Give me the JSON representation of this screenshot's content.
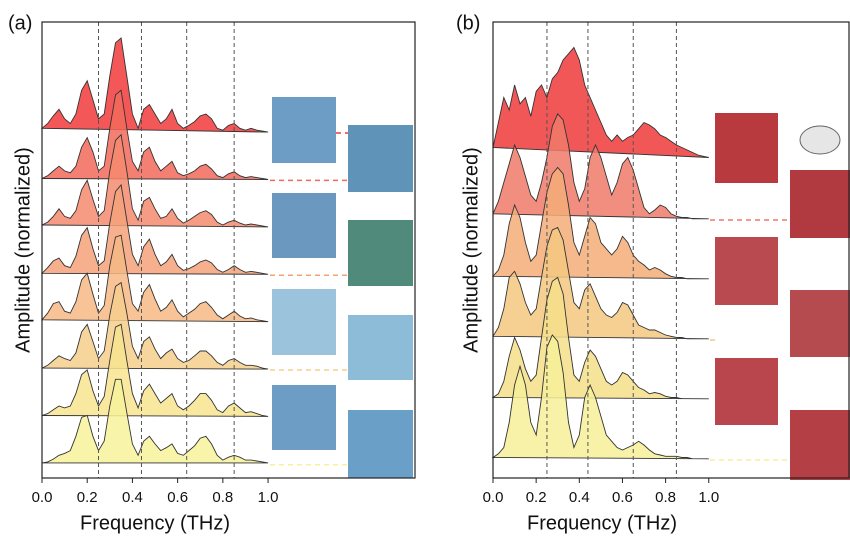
{
  "chart_data": [
    {
      "type": "ridgeline",
      "panel_label": "(a)",
      "x_label": "Frequency (THz)",
      "y_label": "Amplitude (normalized)",
      "x": [
        0,
        0.025,
        0.05,
        0.075,
        0.1,
        0.125,
        0.15,
        0.175,
        0.2,
        0.225,
        0.25,
        0.275,
        0.3,
        0.325,
        0.35,
        0.375,
        0.4,
        0.425,
        0.45,
        0.475,
        0.5,
        0.525,
        0.55,
        0.575,
        0.6,
        0.625,
        0.65,
        0.675,
        0.7,
        0.725,
        0.75,
        0.775,
        0.8,
        0.825,
        0.85,
        0.875,
        0.9,
        0.925,
        0.95,
        0.975,
        1
      ],
      "xlim": [
        0,
        1.65
      ],
      "xticks": [
        {
          "value": 0,
          "label": "0.0"
        },
        0.2,
        0.4,
        0.6,
        0.8,
        {
          "value": 1,
          "label": "1.0"
        }
      ],
      "vlines": [
        0.25,
        0.44,
        0.64,
        0.85
      ],
      "series": [
        {
          "color": "#f23a3a",
          "values": [
            0.05,
            0.1,
            0.18,
            0.25,
            0.15,
            0.1,
            0.2,
            0.45,
            0.55,
            0.35,
            0.15,
            0.2,
            0.6,
            0.95,
            1.0,
            0.6,
            0.2,
            0.05,
            0.25,
            0.3,
            0.2,
            0.1,
            0.15,
            0.25,
            0.1,
            0.05,
            0.08,
            0.12,
            0.18,
            0.2,
            0.15,
            0.05,
            0.03,
            0.08,
            0.1,
            0.05,
            0.03,
            0.05,
            0.03,
            0.02,
            0.01
          ]
        },
        {
          "color": "#f26a5a",
          "values": [
            0.02,
            0.05,
            0.1,
            0.15,
            0.1,
            0.08,
            0.15,
            0.35,
            0.45,
            0.3,
            0.1,
            0.15,
            0.55,
            0.9,
            0.95,
            0.55,
            0.2,
            0.1,
            0.3,
            0.35,
            0.2,
            0.1,
            0.15,
            0.2,
            0.08,
            0.05,
            0.07,
            0.1,
            0.15,
            0.17,
            0.12,
            0.05,
            0.03,
            0.07,
            0.09,
            0.05,
            0.03,
            0.04,
            0.03,
            0.02,
            0.01
          ]
        },
        {
          "color": "#f58a6e",
          "values": [
            0.03,
            0.06,
            0.12,
            0.2,
            0.12,
            0.1,
            0.18,
            0.4,
            0.5,
            0.3,
            0.12,
            0.18,
            0.6,
            0.92,
            0.98,
            0.6,
            0.2,
            0.08,
            0.28,
            0.32,
            0.2,
            0.1,
            0.12,
            0.2,
            0.1,
            0.05,
            0.08,
            0.12,
            0.16,
            0.18,
            0.14,
            0.06,
            0.03,
            0.06,
            0.08,
            0.05,
            0.03,
            0.04,
            0.03,
            0.02,
            0.01
          ]
        },
        {
          "color": "#f5a27a",
          "values": [
            0.02,
            0.08,
            0.15,
            0.18,
            0.1,
            0.08,
            0.2,
            0.42,
            0.5,
            0.28,
            0.1,
            0.15,
            0.55,
            0.88,
            0.95,
            0.58,
            0.22,
            0.1,
            0.3,
            0.38,
            0.22,
            0.1,
            0.14,
            0.22,
            0.1,
            0.05,
            0.07,
            0.1,
            0.14,
            0.16,
            0.13,
            0.06,
            0.03,
            0.06,
            0.1,
            0.06,
            0.03,
            0.04,
            0.03,
            0.02,
            0.01
          ]
        },
        {
          "color": "#f6b985",
          "values": [
            0.03,
            0.1,
            0.2,
            0.22,
            0.12,
            0.1,
            0.22,
            0.45,
            0.52,
            0.3,
            0.1,
            0.18,
            0.6,
            0.9,
            0.92,
            0.55,
            0.2,
            0.12,
            0.32,
            0.4,
            0.25,
            0.12,
            0.16,
            0.24,
            0.12,
            0.06,
            0.1,
            0.14,
            0.2,
            0.22,
            0.16,
            0.08,
            0.04,
            0.08,
            0.12,
            0.07,
            0.04,
            0.05,
            0.03,
            0.02,
            0.01
          ]
        },
        {
          "color": "#f6cf8c",
          "values": [
            0.02,
            0.05,
            0.1,
            0.15,
            0.12,
            0.1,
            0.18,
            0.4,
            0.48,
            0.3,
            0.12,
            0.2,
            0.58,
            0.88,
            0.92,
            0.6,
            0.25,
            0.12,
            0.3,
            0.35,
            0.22,
            0.12,
            0.18,
            0.22,
            0.12,
            0.08,
            0.1,
            0.15,
            0.2,
            0.2,
            0.15,
            0.08,
            0.05,
            0.1,
            0.12,
            0.08,
            0.05,
            0.05,
            0.04,
            0.02,
            0.01
          ]
        },
        {
          "color": "#f7e48f",
          "values": [
            0.02,
            0.04,
            0.08,
            0.12,
            0.1,
            0.12,
            0.25,
            0.45,
            0.5,
            0.28,
            0.12,
            0.22,
            0.6,
            0.95,
            0.98,
            0.6,
            0.25,
            0.1,
            0.28,
            0.35,
            0.25,
            0.15,
            0.2,
            0.25,
            0.12,
            0.08,
            0.12,
            0.18,
            0.25,
            0.25,
            0.18,
            0.08,
            0.05,
            0.12,
            0.15,
            0.1,
            0.05,
            0.06,
            0.04,
            0.02,
            0.01
          ]
        },
        {
          "color": "#f7f29a",
          "values": [
            0.02,
            0.03,
            0.06,
            0.1,
            0.12,
            0.15,
            0.3,
            0.5,
            0.52,
            0.3,
            0.15,
            0.25,
            0.62,
            0.9,
            0.9,
            0.55,
            0.22,
            0.1,
            0.25,
            0.3,
            0.22,
            0.15,
            0.18,
            0.22,
            0.12,
            0.1,
            0.15,
            0.2,
            0.28,
            0.3,
            0.22,
            0.1,
            0.05,
            0.08,
            0.1,
            0.08,
            0.05,
            0.05,
            0.04,
            0.03,
            0.02
          ]
        }
      ]
    },
    {
      "type": "ridgeline",
      "panel_label": "(b)",
      "x_label": "Frequency (THz)",
      "y_label": "Amplitude (normalized)",
      "x": [
        0,
        0.025,
        0.05,
        0.075,
        0.1,
        0.125,
        0.15,
        0.175,
        0.2,
        0.225,
        0.25,
        0.275,
        0.3,
        0.325,
        0.35,
        0.375,
        0.4,
        0.425,
        0.45,
        0.475,
        0.5,
        0.525,
        0.55,
        0.575,
        0.6,
        0.625,
        0.65,
        0.675,
        0.7,
        0.725,
        0.75,
        0.775,
        0.8,
        0.825,
        0.85,
        0.875,
        0.9,
        0.925,
        0.95,
        0.975,
        1
      ],
      "xlim": [
        0,
        1.65
      ],
      "xticks": [
        {
          "value": 0,
          "label": "0.0"
        },
        0.2,
        0.4,
        0.6,
        0.8,
        {
          "value": 1,
          "label": "1.0"
        }
      ],
      "vlines": [
        0.25,
        0.44,
        0.65,
        0.85
      ],
      "series": [
        {
          "color": "#ee3a3a",
          "values": [
            0.1,
            0.3,
            0.5,
            0.4,
            0.6,
            0.45,
            0.5,
            0.35,
            0.55,
            0.6,
            0.5,
            0.65,
            0.7,
            0.8,
            0.85,
            0.9,
            0.8,
            0.6,
            0.5,
            0.4,
            0.3,
            0.2,
            0.15,
            0.2,
            0.15,
            0.18,
            0.2,
            0.25,
            0.3,
            0.28,
            0.25,
            0.2,
            0.18,
            0.15,
            0.12,
            0.1,
            0.08,
            0.06,
            0.04,
            0.03,
            0.02
          ]
        },
        {
          "color": "#f07a6a",
          "values": [
            0.05,
            0.15,
            0.3,
            0.45,
            0.6,
            0.5,
            0.35,
            0.2,
            0.15,
            0.3,
            0.5,
            0.75,
            0.85,
            0.8,
            0.6,
            0.3,
            0.15,
            0.25,
            0.5,
            0.6,
            0.5,
            0.35,
            0.2,
            0.3,
            0.45,
            0.5,
            0.4,
            0.25,
            0.1,
            0.05,
            0.08,
            0.12,
            0.1,
            0.05,
            0.03,
            0.02,
            0.02,
            0.01,
            0.01,
            0.01,
            0.01
          ]
        },
        {
          "color": "#f4ad78",
          "values": [
            0.03,
            0.08,
            0.2,
            0.45,
            0.6,
            0.5,
            0.3,
            0.15,
            0.2,
            0.45,
            0.7,
            0.85,
            0.9,
            0.85,
            0.6,
            0.3,
            0.2,
            0.35,
            0.5,
            0.45,
            0.3,
            0.25,
            0.2,
            0.25,
            0.35,
            0.3,
            0.2,
            0.15,
            0.12,
            0.08,
            0.1,
            0.08,
            0.05,
            0.03,
            0.02,
            0.02,
            0.01,
            0.01,
            0.01,
            0.01,
            0.01
          ]
        },
        {
          "color": "#f5c880",
          "values": [
            0.03,
            0.1,
            0.25,
            0.5,
            0.55,
            0.45,
            0.3,
            0.2,
            0.25,
            0.5,
            0.75,
            0.88,
            0.9,
            0.8,
            0.55,
            0.3,
            0.25,
            0.4,
            0.45,
            0.35,
            0.25,
            0.2,
            0.18,
            0.22,
            0.3,
            0.28,
            0.2,
            0.12,
            0.1,
            0.08,
            0.08,
            0.06,
            0.04,
            0.03,
            0.02,
            0.02,
            0.01,
            0.01,
            0.01,
            0.01,
            0.01
          ]
        },
        {
          "color": "#f6df8a",
          "values": [
            0.02,
            0.05,
            0.15,
            0.35,
            0.5,
            0.4,
            0.25,
            0.15,
            0.2,
            0.5,
            0.8,
            0.95,
            0.98,
            0.85,
            0.5,
            0.2,
            0.15,
            0.3,
            0.4,
            0.35,
            0.25,
            0.15,
            0.12,
            0.15,
            0.22,
            0.2,
            0.15,
            0.1,
            0.08,
            0.05,
            0.06,
            0.05,
            0.03,
            0.02,
            0.02,
            0.01,
            0.01,
            0.01,
            0.01,
            0.01,
            0.01
          ]
        },
        {
          "color": "#f7f09a",
          "values": [
            0.02,
            0.05,
            0.1,
            0.3,
            0.6,
            0.75,
            0.6,
            0.3,
            0.2,
            0.5,
            0.9,
            1.0,
            0.95,
            0.7,
            0.3,
            0.1,
            0.2,
            0.5,
            0.6,
            0.5,
            0.35,
            0.2,
            0.15,
            0.1,
            0.08,
            0.1,
            0.12,
            0.15,
            0.12,
            0.08,
            0.05,
            0.04,
            0.03,
            0.03,
            0.03,
            0.02,
            0.02,
            0.01,
            0.01,
            0.01,
            0.01
          ]
        }
      ]
    }
  ]
}
